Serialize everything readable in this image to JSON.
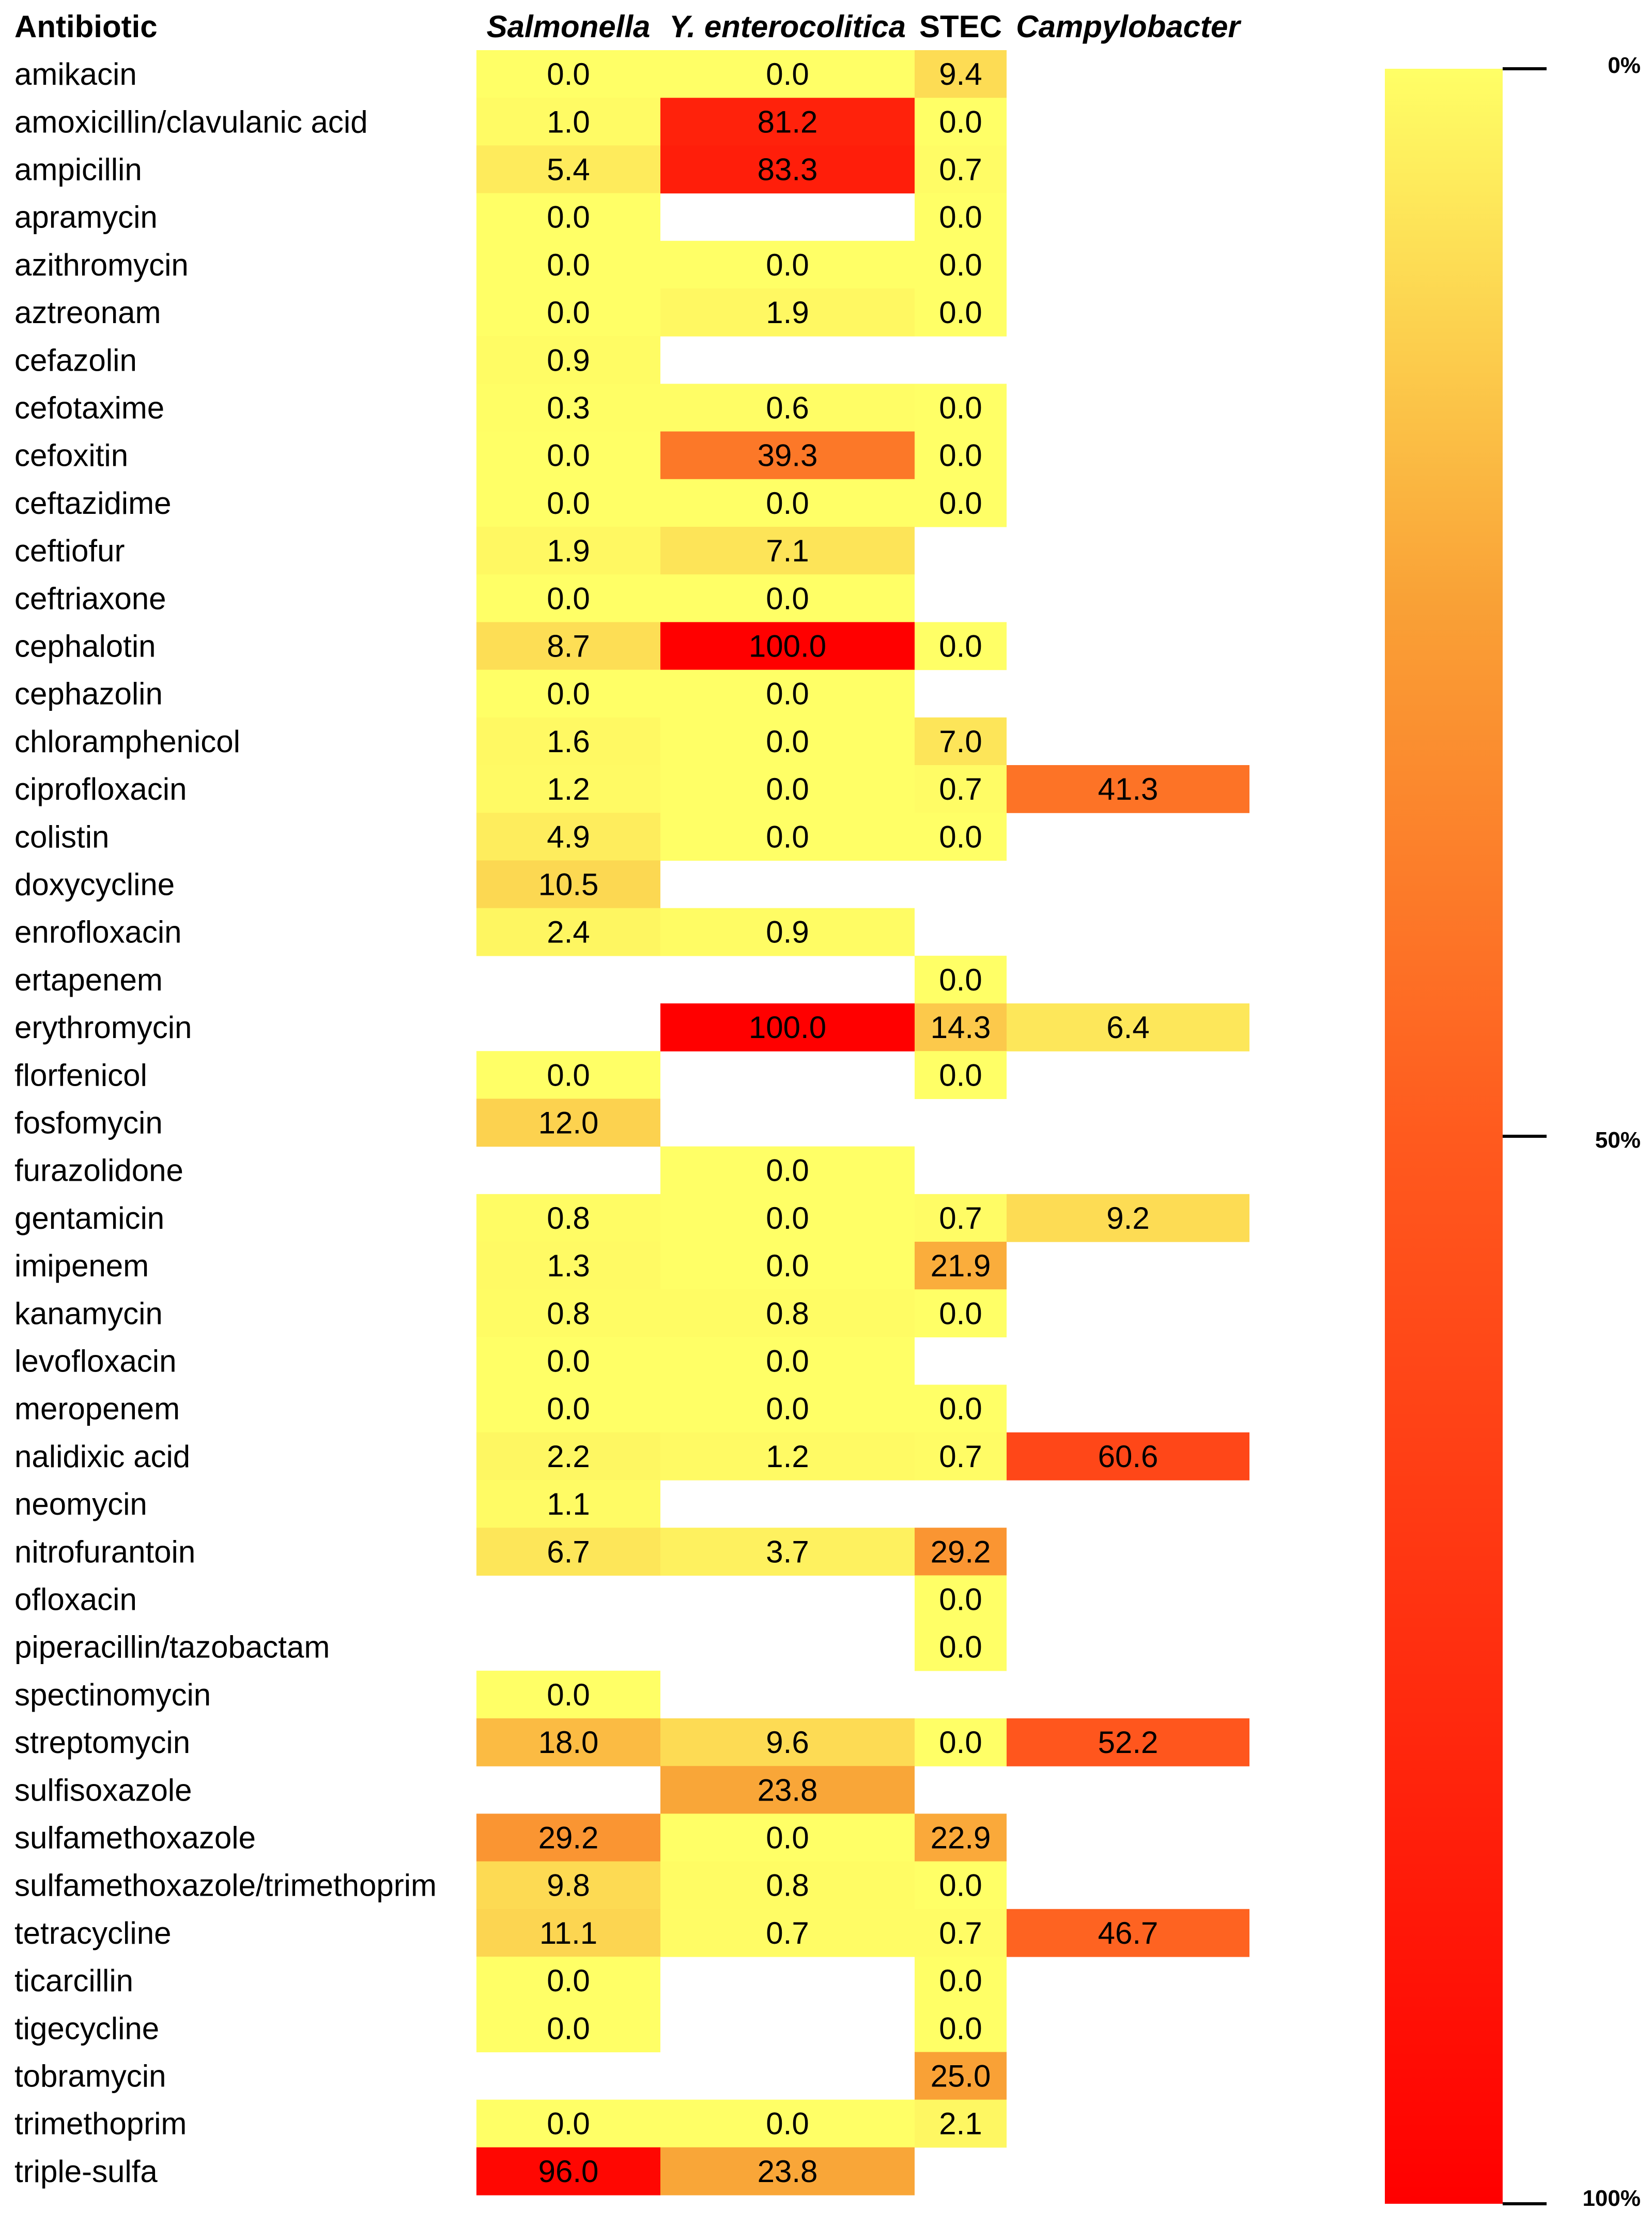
{
  "chart_data": {
    "type": "heatmap",
    "title": "",
    "row_header": "Antibiotic",
    "columns": [
      {
        "name": "Salmonella",
        "italic": true
      },
      {
        "name": "Y. enterocolitica",
        "italic": true
      },
      {
        "name": "STEC",
        "italic": false
      },
      {
        "name": "Campylobacter",
        "italic": true
      }
    ],
    "rows": [
      {
        "antibiotic": "amikacin",
        "values": [
          "0.0",
          "0.0",
          "9.4",
          null
        ]
      },
      {
        "antibiotic": "amoxicillin/clavulanic acid",
        "values": [
          "1.0",
          "81.2",
          "0.0",
          null
        ]
      },
      {
        "antibiotic": "ampicillin",
        "values": [
          "5.4",
          "83.3",
          "0.7",
          null
        ]
      },
      {
        "antibiotic": "apramycin",
        "values": [
          "0.0",
          null,
          "0.0",
          null
        ]
      },
      {
        "antibiotic": "azithromycin",
        "values": [
          "0.0",
          "0.0",
          "0.0",
          null
        ]
      },
      {
        "antibiotic": "aztreonam",
        "values": [
          "0.0",
          "1.9",
          "0.0",
          null
        ]
      },
      {
        "antibiotic": "cefazolin",
        "values": [
          "0.9",
          null,
          null,
          null
        ]
      },
      {
        "antibiotic": "cefotaxime",
        "values": [
          "0.3",
          "0.6",
          "0.0",
          null
        ]
      },
      {
        "antibiotic": "cefoxitin",
        "values": [
          "0.0",
          "39.3",
          "0.0",
          null
        ]
      },
      {
        "antibiotic": "ceftazidime",
        "values": [
          "0.0",
          "0.0",
          "0.0",
          null
        ]
      },
      {
        "antibiotic": "ceftiofur",
        "values": [
          "1.9",
          "7.1",
          null,
          null
        ]
      },
      {
        "antibiotic": "ceftriaxone",
        "values": [
          "0.0",
          "0.0",
          null,
          null
        ]
      },
      {
        "antibiotic": "cephalotin",
        "values": [
          "8.7",
          "100.0",
          "0.0",
          null
        ]
      },
      {
        "antibiotic": "cephazolin",
        "values": [
          "0.0",
          "0.0",
          null,
          null
        ]
      },
      {
        "antibiotic": "chloramphenicol",
        "values": [
          "1.6",
          "0.0",
          "7.0",
          null
        ]
      },
      {
        "antibiotic": "ciprofloxacin",
        "values": [
          "1.2",
          "0.0",
          "0.7",
          "41.3"
        ]
      },
      {
        "antibiotic": "colistin",
        "values": [
          "4.9",
          "0.0",
          "0.0",
          null
        ]
      },
      {
        "antibiotic": "doxycycline",
        "values": [
          "10.5",
          null,
          null,
          null
        ]
      },
      {
        "antibiotic": "enrofloxacin",
        "values": [
          "2.4",
          "0.9",
          null,
          null
        ]
      },
      {
        "antibiotic": "ertapenem",
        "values": [
          null,
          null,
          "0.0",
          null
        ]
      },
      {
        "antibiotic": "erythromycin",
        "values": [
          null,
          "100.0",
          "14.3",
          "6.4"
        ]
      },
      {
        "antibiotic": "florfenicol",
        "values": [
          "0.0",
          null,
          "0.0",
          null
        ]
      },
      {
        "antibiotic": "fosfomycin",
        "values": [
          "12.0",
          null,
          null,
          null
        ]
      },
      {
        "antibiotic": "furazolidone",
        "values": [
          null,
          "0.0",
          null,
          null
        ]
      },
      {
        "antibiotic": "gentamicin",
        "values": [
          "0.8",
          "0.0",
          "0.7",
          "9.2"
        ]
      },
      {
        "antibiotic": "imipenem",
        "values": [
          "1.3",
          "0.0",
          "21.9",
          null
        ]
      },
      {
        "antibiotic": "kanamycin",
        "values": [
          "0.8",
          "0.8",
          "0.0",
          null
        ]
      },
      {
        "antibiotic": "levofloxacin",
        "values": [
          "0.0",
          "0.0",
          null,
          null
        ]
      },
      {
        "antibiotic": "meropenem",
        "values": [
          "0.0",
          "0.0",
          "0.0",
          null
        ]
      },
      {
        "antibiotic": "nalidixic acid",
        "values": [
          "2.2",
          "1.2",
          "0.7",
          "60.6"
        ]
      },
      {
        "antibiotic": "neomycin",
        "values": [
          "1.1",
          null,
          null,
          null
        ]
      },
      {
        "antibiotic": "nitrofurantoin",
        "values": [
          "6.7",
          "3.7",
          "29.2",
          null
        ]
      },
      {
        "antibiotic": "ofloxacin",
        "values": [
          null,
          null,
          "0.0",
          null
        ]
      },
      {
        "antibiotic": "piperacillin/tazobactam",
        "values": [
          null,
          null,
          "0.0",
          null
        ]
      },
      {
        "antibiotic": "spectinomycin",
        "values": [
          "0.0",
          null,
          null,
          null
        ]
      },
      {
        "antibiotic": "streptomycin",
        "values": [
          "18.0",
          "9.6",
          "0.0",
          "52.2"
        ]
      },
      {
        "antibiotic": "sulfisoxazole",
        "values": [
          null,
          "23.8",
          null,
          null
        ]
      },
      {
        "antibiotic": "sulfamethoxazole",
        "values": [
          "29.2",
          "0.0",
          "22.9",
          null
        ]
      },
      {
        "antibiotic": "sulfamethoxazole/trimethoprim",
        "values": [
          "9.8",
          "0.8",
          "0.0",
          null
        ]
      },
      {
        "antibiotic": "tetracycline",
        "values": [
          "11.1",
          "0.7",
          "0.7",
          "46.7"
        ]
      },
      {
        "antibiotic": "ticarcillin",
        "values": [
          "0.0",
          null,
          "0.0",
          null
        ]
      },
      {
        "antibiotic": "tigecycline",
        "values": [
          "0.0",
          null,
          "0.0",
          null
        ]
      },
      {
        "antibiotic": "tobramycin",
        "values": [
          null,
          null,
          "25.0",
          null
        ]
      },
      {
        "antibiotic": "trimethoprim",
        "values": [
          "0.0",
          "0.0",
          "2.1",
          null
        ]
      },
      {
        "antibiotic": "triple-sulfa",
        "values": [
          "96.0",
          "23.8",
          null,
          null
        ]
      }
    ],
    "color_scale": {
      "min": 0,
      "max": 100,
      "stops": [
        {
          "value": 0,
          "color": "#ffff66"
        },
        {
          "value": 25,
          "color": "#f9a136"
        },
        {
          "value": 50,
          "color": "#ff5a1e"
        },
        {
          "value": 100,
          "color": "#ff0000"
        }
      ],
      "ticks": [
        {
          "value": 0,
          "label": "0%"
        },
        {
          "value": 50,
          "label": "50%"
        },
        {
          "value": 100,
          "label": "100%"
        }
      ]
    }
  }
}
